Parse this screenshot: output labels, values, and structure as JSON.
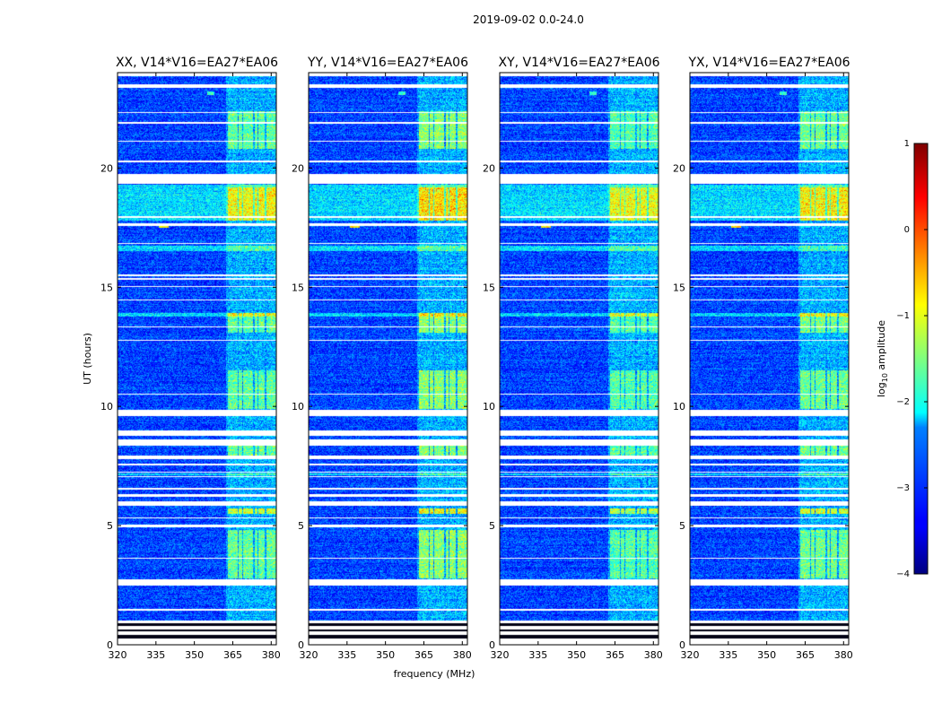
{
  "chart_data": {
    "type": "heatmap",
    "title": "2019-09-02 0.0-24.0",
    "xlabel": "frequency (MHz)",
    "ylabel": "UT (hours)",
    "xlim": [
      320,
      382
    ],
    "ylim": [
      0,
      24
    ],
    "xticks": [
      320,
      335,
      350,
      365,
      380
    ],
    "yticks": [
      0,
      5,
      10,
      15,
      20
    ],
    "panels": [
      {
        "title": "XX, V14*V16=EA27*EA06",
        "intensity": 1.0
      },
      {
        "title": "YY, V14*V16=EA27*EA06",
        "intensity": 1.15
      },
      {
        "title": "XY, V14*V16=EA27*EA06",
        "intensity": 0.95
      },
      {
        "title": "YX, V14*V16=EA27*EA06",
        "intensity": 1.05
      }
    ],
    "colorbar": {
      "label": "log$_{10}$ amplitude",
      "label_text": "log",
      "label_sub": "10",
      "label_rest": " amplitude",
      "range": [
        -4,
        1
      ],
      "ticks": [
        1,
        0,
        -1,
        -2,
        -3,
        -4
      ],
      "tick_labels": [
        "1",
        "0",
        "−1",
        "−2",
        "−3",
        "−4"
      ],
      "colormap": "jet"
    },
    "flagged_bands_hours": [
      [
        0.0,
        0.28
      ],
      [
        0.42,
        0.55
      ],
      [
        0.65,
        0.8
      ],
      [
        0.9,
        1.0
      ],
      [
        1.42,
        1.5
      ],
      [
        2.5,
        2.75
      ],
      [
        3.62,
        3.66
      ],
      [
        4.92,
        5.04
      ],
      [
        5.3,
        5.36
      ],
      [
        5.82,
        6.02
      ],
      [
        6.2,
        6.32
      ],
      [
        6.5,
        6.58
      ],
      [
        7.02,
        7.06
      ],
      [
        7.22,
        7.27
      ],
      [
        7.52,
        7.58
      ],
      [
        7.78,
        7.95
      ],
      [
        8.35,
        8.6
      ],
      [
        8.78,
        9.0
      ],
      [
        9.6,
        9.85
      ],
      [
        10.5,
        10.55
      ],
      [
        12.75,
        12.8
      ],
      [
        13.3,
        13.36
      ],
      [
        14.45,
        14.5
      ],
      [
        15.0,
        15.06
      ],
      [
        15.3,
        15.37
      ],
      [
        15.45,
        15.55
      ],
      [
        16.8,
        16.86
      ],
      [
        17.55,
        17.68
      ],
      [
        17.9,
        18.0
      ],
      [
        19.35,
        19.75
      ],
      [
        20.25,
        20.3
      ],
      [
        21.1,
        21.15
      ],
      [
        21.85,
        21.92
      ],
      [
        22.32,
        22.36
      ],
      [
        23.35,
        23.5
      ],
      [
        23.85,
        24.0
      ]
    ],
    "rfi_block_frequency_mhz": [
      [
        363,
        367
      ],
      [
        367.3,
        368.8
      ],
      [
        369,
        373
      ],
      [
        373.5,
        374.8
      ],
      [
        375,
        377.5
      ],
      [
        378,
        382
      ]
    ],
    "rfi_active_hours": [
      [
        2.8,
        4.8
      ],
      [
        5.5,
        5.7
      ],
      [
        7.9,
        8.4
      ],
      [
        9.9,
        11.5
      ],
      [
        13.1,
        13.9
      ],
      [
        17.8,
        19.2
      ],
      [
        20.8,
        22.4
      ]
    ]
  }
}
